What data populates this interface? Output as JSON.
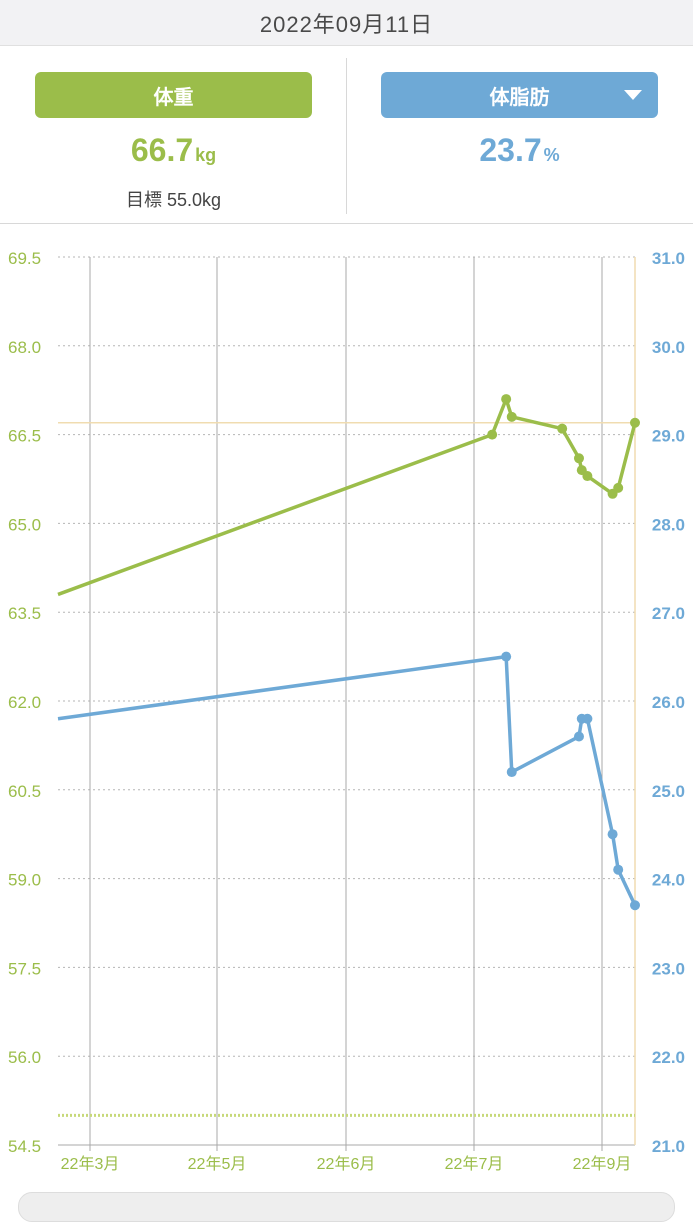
{
  "header": {
    "date": "2022年09月11日"
  },
  "summary": {
    "weight": {
      "label": "体重",
      "value": "66.7",
      "unit": "kg",
      "goal": "目標 55.0kg"
    },
    "body_fat": {
      "label": "体脂肪",
      "value": "23.7",
      "unit": "%",
      "dropdown_icon": "caret-down-icon"
    }
  },
  "colors": {
    "weight": "#9bbd4a",
    "body_fat": "#6ea9d6",
    "grid": "#b5b5b5",
    "goal_line": "#c7d97a",
    "current_line": "#f0dcb0"
  },
  "chart_data": {
    "type": "line",
    "x_axis": {
      "tick_labels": [
        "22年3月",
        "22年5月",
        "22年6月",
        "22年7月",
        "22年9月"
      ],
      "range": [
        "2022-02-17",
        "2022-09-11"
      ]
    },
    "y_left": {
      "tick_labels": [
        "69.5",
        "68.0",
        "66.5",
        "65.0",
        "63.5",
        "62.0",
        "60.5",
        "59.0",
        "57.5",
        "56.0",
        "54.5"
      ],
      "range": [
        54.5,
        69.5
      ]
    },
    "y_right": {
      "tick_labels": [
        "31.0",
        "30.0",
        "29.0",
        "28.0",
        "27.0",
        "26.0",
        "25.0",
        "24.0",
        "23.0",
        "22.0",
        "21.0"
      ],
      "range": [
        21.0,
        31.0
      ]
    },
    "reference_lines": {
      "weight_goal": 55.0,
      "weight_current": 66.7
    },
    "series": [
      {
        "axis": "left",
        "points": [
          {
            "x": "2022-02-17",
            "y": 63.8,
            "marker": false
          },
          {
            "x": "2022-07-22",
            "y": 66.5
          },
          {
            "x": "2022-07-27",
            "y": 67.1
          },
          {
            "x": "2022-07-29",
            "y": 66.8
          },
          {
            "x": "2022-08-16",
            "y": 66.6
          },
          {
            "x": "2022-08-22",
            "y": 66.1
          },
          {
            "x": "2022-08-23",
            "y": 65.9
          },
          {
            "x": "2022-08-25",
            "y": 65.8
          },
          {
            "x": "2022-09-03",
            "y": 65.5
          },
          {
            "x": "2022-09-05",
            "y": 65.6
          },
          {
            "x": "2022-09-11",
            "y": 66.7
          }
        ]
      },
      {
        "axis": "right",
        "points": [
          {
            "x": "2022-02-17",
            "y": 25.8,
            "marker": false
          },
          {
            "x": "2022-07-27",
            "y": 26.5
          },
          {
            "x": "2022-07-29",
            "y": 25.2
          },
          {
            "x": "2022-08-22",
            "y": 25.6
          },
          {
            "x": "2022-08-23",
            "y": 25.8
          },
          {
            "x": "2022-08-25",
            "y": 25.8
          },
          {
            "x": "2022-09-03",
            "y": 24.5
          },
          {
            "x": "2022-09-05",
            "y": 24.1
          },
          {
            "x": "2022-09-11",
            "y": 23.7
          }
        ]
      }
    ]
  }
}
